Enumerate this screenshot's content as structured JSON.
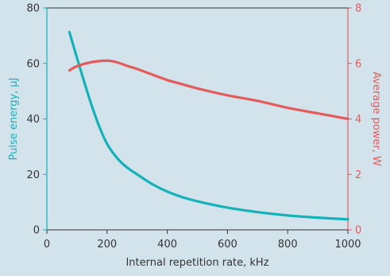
{
  "colors": {
    "background": "#d3e3ec",
    "left_axis": "#14b2b8",
    "right_axis": "#e45b5b",
    "text": "#333333"
  },
  "chart_data": {
    "type": "line",
    "title": "",
    "xlabel": "Internal repetition rate, kHz",
    "ylabel_left": "Pulse energy, μJ",
    "ylabel_right": "Average power, W",
    "xlim": [
      0,
      1000
    ],
    "ylim_left": [
      0,
      80
    ],
    "ylim_right": [
      0,
      8
    ],
    "x_ticks": [
      0,
      200,
      400,
      600,
      800,
      1000
    ],
    "x_tick_labels": [
      "0",
      "200",
      "400",
      "600",
      "800",
      "1000"
    ],
    "y_left_ticks": [
      0,
      20,
      40,
      60,
      80
    ],
    "y_left_tick_labels": [
      "0",
      "20",
      "40",
      "60",
      "80"
    ],
    "y_right_ticks": [
      0,
      2,
      4,
      6,
      8
    ],
    "y_right_tick_labels": [
      "0",
      "2",
      "4",
      "6",
      "8"
    ],
    "grid": false,
    "series": [
      {
        "axis": "left",
        "color": "#14b2b8",
        "x": [
          75,
          100,
          125,
          150,
          175,
          200,
          225,
          250,
          275,
          300,
          350,
          400,
          450,
          500,
          600,
          700,
          800,
          900,
          1000
        ],
        "y": [
          71.3,
          62,
          53,
          44.5,
          37,
          31,
          27,
          24,
          21.8,
          20,
          16.5,
          13.8,
          11.8,
          10.3,
          8,
          6.4,
          5.2,
          4.4,
          3.8
        ]
      },
      {
        "axis": "right",
        "color": "#e45b5b",
        "x": [
          75,
          100,
          150,
          200,
          230,
          270,
          300,
          350,
          400,
          450,
          500,
          600,
          700,
          800,
          900,
          1000
        ],
        "y": [
          5.75,
          5.9,
          6.05,
          6.1,
          6.05,
          5.9,
          5.8,
          5.6,
          5.4,
          5.25,
          5.1,
          4.85,
          4.65,
          4.4,
          4.2,
          4.0
        ]
      }
    ]
  }
}
